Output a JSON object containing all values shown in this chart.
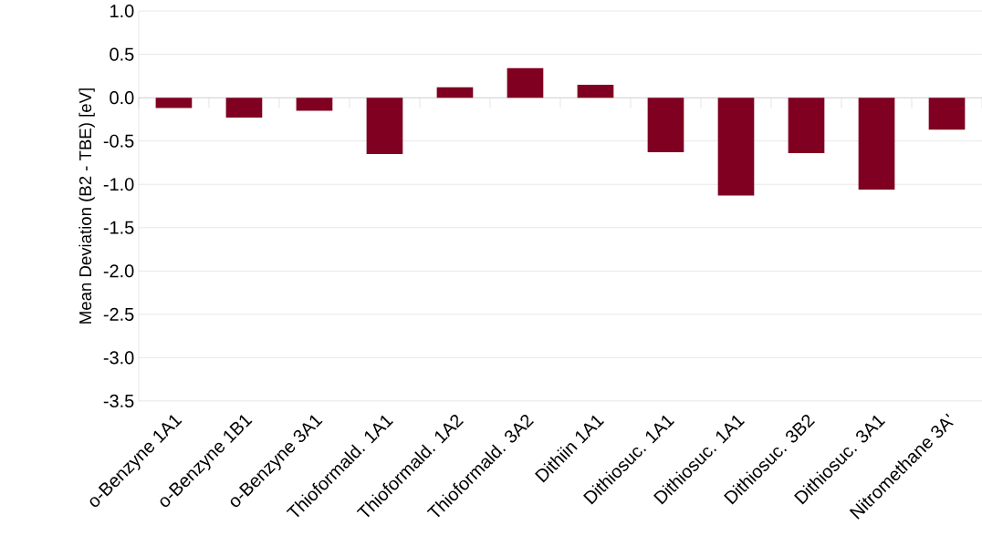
{
  "chart_data": {
    "type": "bar",
    "ylabel": "Mean Deviation (B2 - TBE) [eV]",
    "categories": [
      "o-Benzyne 1A1",
      "o-Benzyne 1B1",
      "o-Benzyne 3A1",
      "Thioformald. 1A1",
      "Thioformald. 1A2",
      "Thioformald. 3A2",
      "Dithiin 1A1",
      "Dithiosuc. 1A1",
      "Dithiosuc. 1A1",
      "Dithiosuc. 3B2",
      "Dithiosuc. 3A1",
      "Nitromethane 3A'"
    ],
    "values": [
      -0.12,
      -0.23,
      -0.15,
      -0.65,
      0.12,
      0.34,
      0.15,
      -0.63,
      -1.13,
      -0.64,
      -1.06,
      -0.37
    ],
    "color": "#7f0020",
    "ylim": [
      -3.5,
      1.0
    ],
    "yticks": [
      {
        "value": -3.5,
        "label": "-3.5"
      },
      {
        "value": -3.0,
        "label": "-3.0"
      },
      {
        "value": -2.5,
        "label": "-2.5"
      },
      {
        "value": -2.0,
        "label": "-2.0"
      },
      {
        "value": -1.5,
        "label": "-1.5"
      },
      {
        "value": -1.0,
        "label": "-1.0"
      },
      {
        "value": -0.5,
        "label": "-0.5"
      },
      {
        "value": 0.0,
        "label": "0.0"
      },
      {
        "value": 0.5,
        "label": "0.5"
      },
      {
        "value": 1.0,
        "label": "1.0"
      }
    ],
    "grid": "y"
  }
}
